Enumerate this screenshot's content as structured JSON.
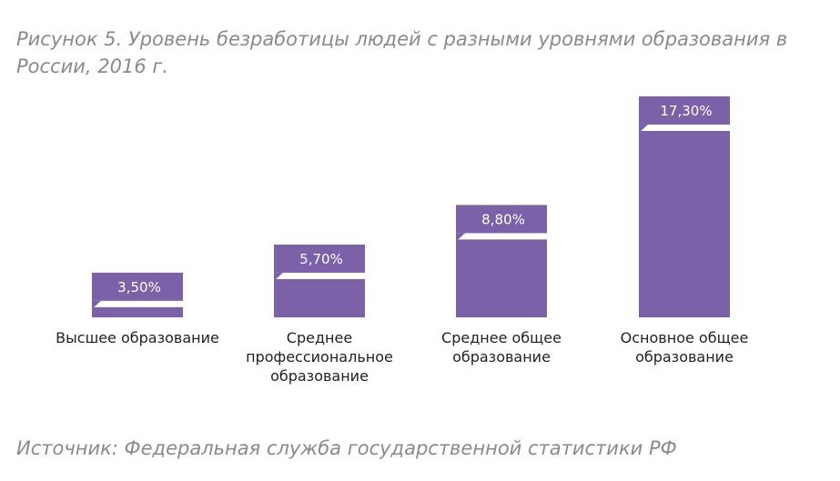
{
  "chart_data": {
    "type": "bar",
    "title": "Рисунок 5. Уровень безработицы людей с разными уровнями образования в России, 2016 г.",
    "categories": [
      "Высшее  образование",
      "Среднее профессиональное образование",
      "Среднее общее образование",
      "Основное общее образование"
    ],
    "category_lines": [
      [
        "Высшее  образование"
      ],
      [
        "Среднее",
        "профессиональное",
        "образование"
      ],
      [
        "Среднее общее",
        "образование"
      ],
      [
        "Основное общее",
        "образование"
      ]
    ],
    "values": [
      3.5,
      5.7,
      8.8,
      17.3
    ],
    "value_labels": [
      "3,50%",
      "5,70%",
      "8,80%",
      "17,30%"
    ],
    "unit": "%",
    "grid": false,
    "legend": "none",
    "colors": {
      "bar": "#7b61a8",
      "title_text": "#8a8a8a",
      "label_text": "#222222",
      "value_text": "#ffffff"
    }
  },
  "source": "Источник: Федеральная служба государственной статистики РФ"
}
